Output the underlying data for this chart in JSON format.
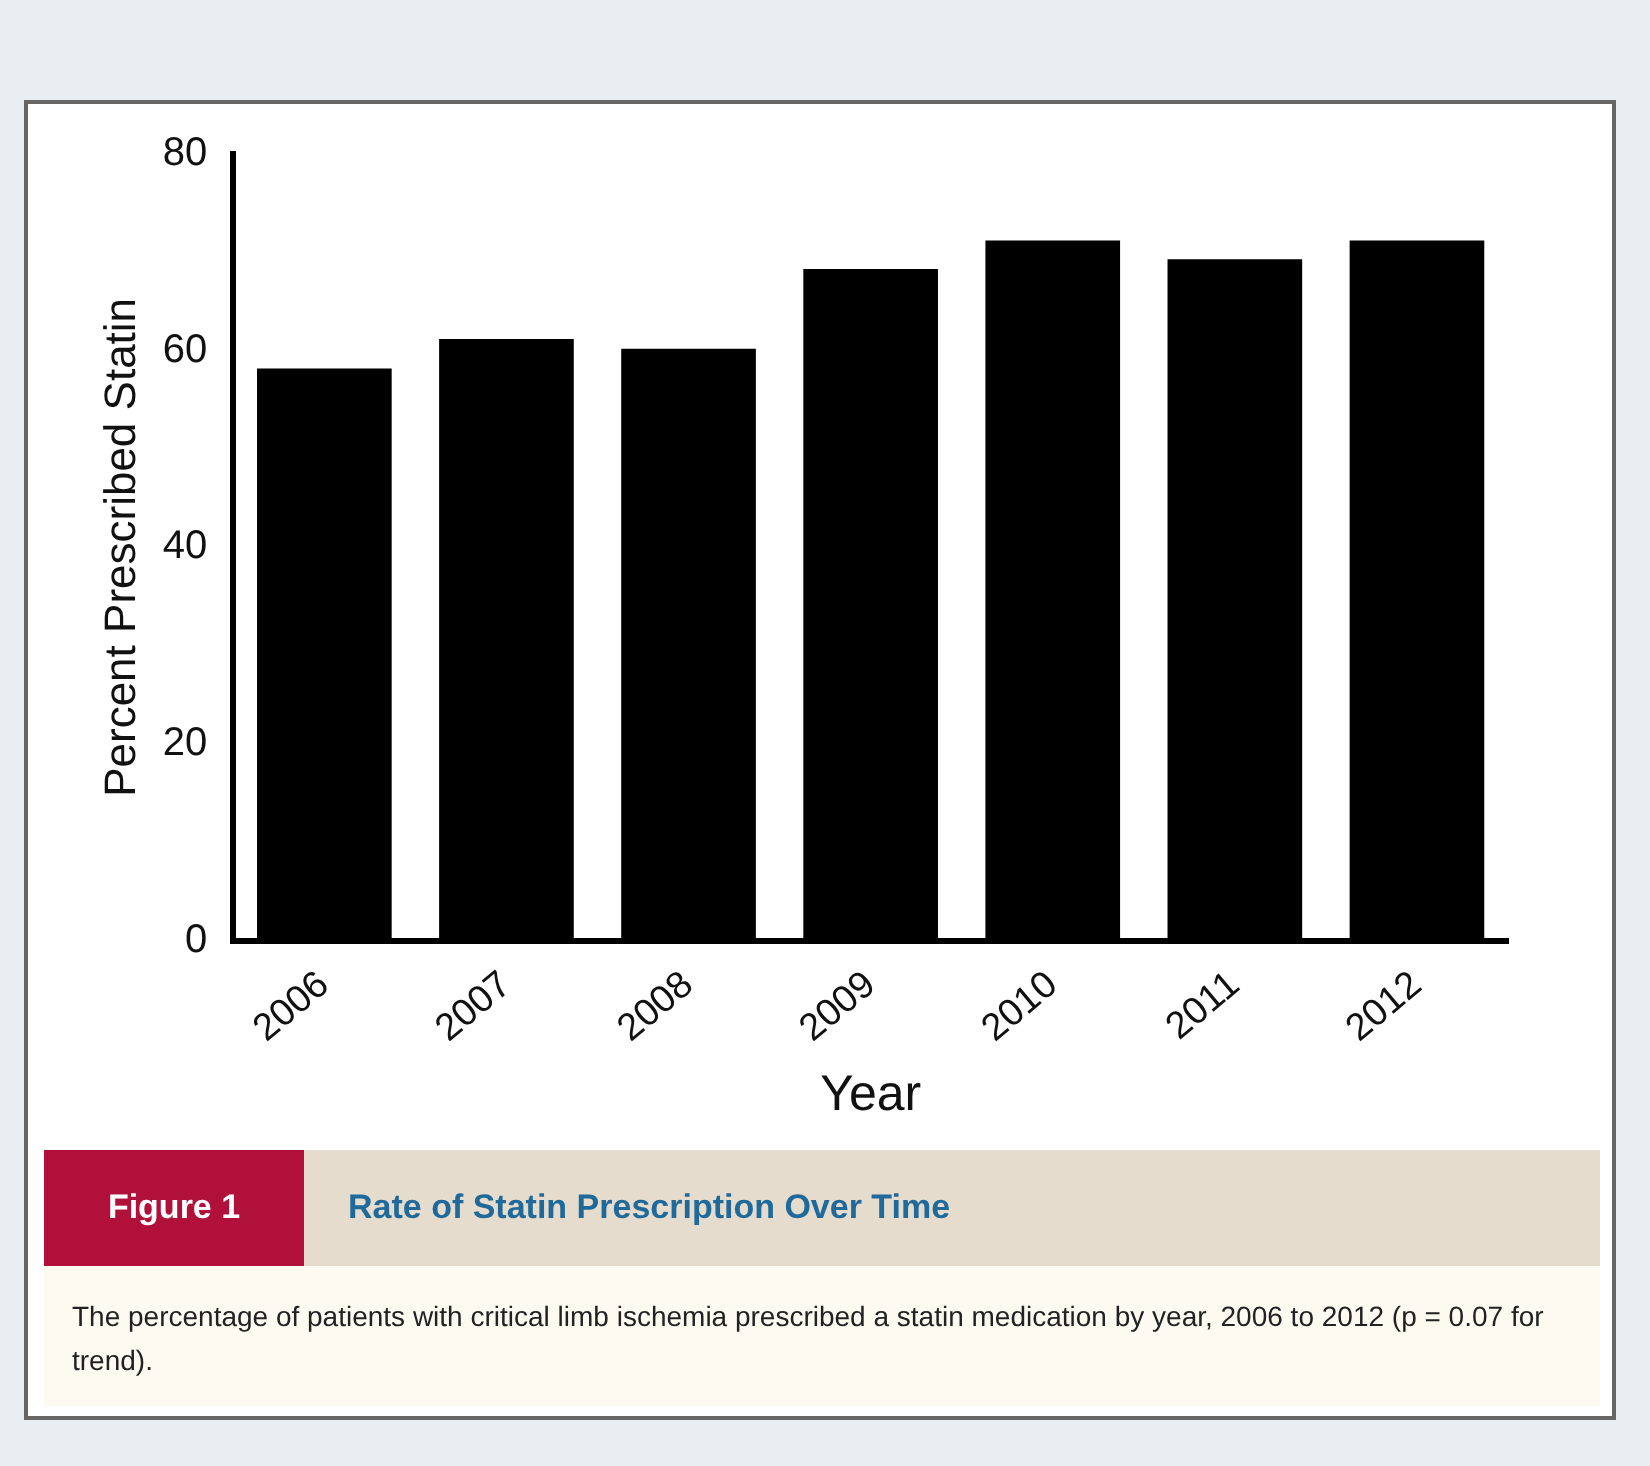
{
  "chart_data": {
    "type": "bar",
    "title": "Rate of Statin Prescription Over Time",
    "xlabel": "Year",
    "ylabel": "Percent Prescribed Statin",
    "categories": [
      "2006",
      "2007",
      "2008",
      "2009",
      "2010",
      "2011",
      "2012"
    ],
    "values": [
      58.2,
      61.2,
      60.2,
      68.3,
      71.2,
      69.3,
      71.2
    ],
    "color": "#000000",
    "ylim": [
      0,
      80
    ],
    "yticks": [
      0,
      20,
      40,
      60,
      80
    ],
    "grid": false,
    "legend": false,
    "annotations": [
      "Figure 1",
      "The percentage of patients with critical limb ischemia prescribed a statin medication by year, 2006 to 2012 (p = 0.07 for trend)."
    ]
  }
}
